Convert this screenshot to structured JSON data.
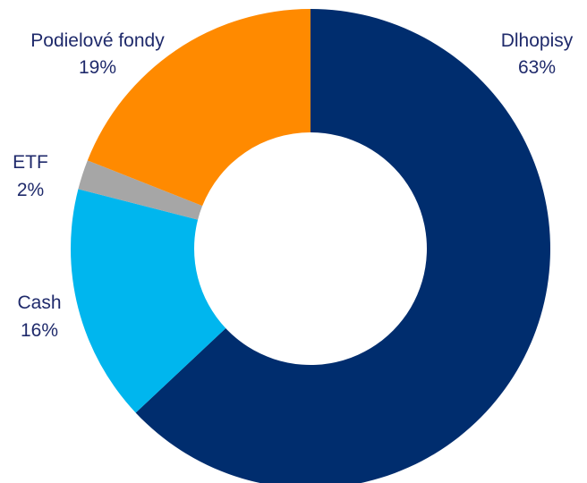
{
  "chart_data": {
    "type": "donut",
    "start_angle_deg": 0,
    "direction": "clockwise",
    "slices": [
      {
        "name": "Dlhopisy",
        "label": "Dlhopisy",
        "value_label": "63%",
        "value": 63,
        "color": "#002d6e"
      },
      {
        "name": "Cash",
        "label": "Cash",
        "value_label": "16%",
        "value": 16,
        "color": "#00b6ee"
      },
      {
        "name": "ETF",
        "label": "ETF",
        "value_label": "2%",
        "value": 2,
        "color": "#a6a6a6"
      },
      {
        "name": "Podielové fondy",
        "label": "Podielové fondy",
        "value_label": "19%",
        "value": 19,
        "color": "#ff8a00"
      }
    ]
  }
}
